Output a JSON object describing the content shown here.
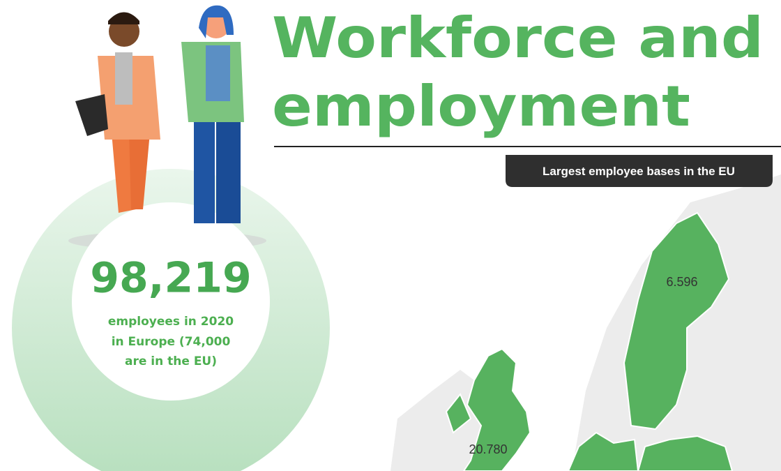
{
  "header": {
    "title_lines": [
      "Workforce and",
      "employment"
    ]
  },
  "stat": {
    "value": "98,219",
    "description_lines": [
      "employees in 2020",
      "in Europe (74,000",
      "are in the EU)"
    ]
  },
  "map": {
    "title": "Largest employee bases in the EU",
    "labels": [
      "6.596",
      "20.780"
    ]
  }
}
